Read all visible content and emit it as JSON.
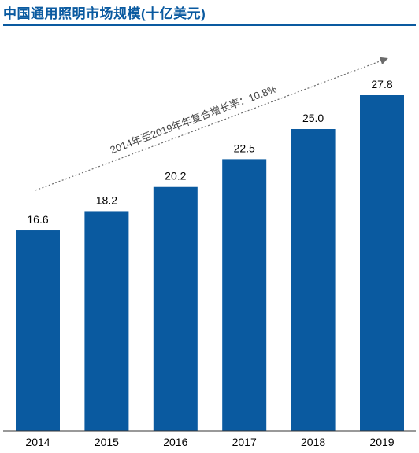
{
  "chart_data": {
    "type": "bar",
    "title": "中国通用照明市场规模(十亿美元)",
    "categories": [
      "2014",
      "2015",
      "2016",
      "2017",
      "2018",
      "2019"
    ],
    "values": [
      16.6,
      18.2,
      20.2,
      22.5,
      25.0,
      27.8
    ],
    "value_labels": [
      "16.6",
      "18.2",
      "20.2",
      "22.5",
      "25.0",
      "27.8"
    ],
    "bar_color": "#0a5aa0",
    "annotation": "2014年至2019年年复合增长率：10.8%",
    "ylim": [
      0,
      30
    ],
    "grid": false,
    "legend": "none"
  }
}
